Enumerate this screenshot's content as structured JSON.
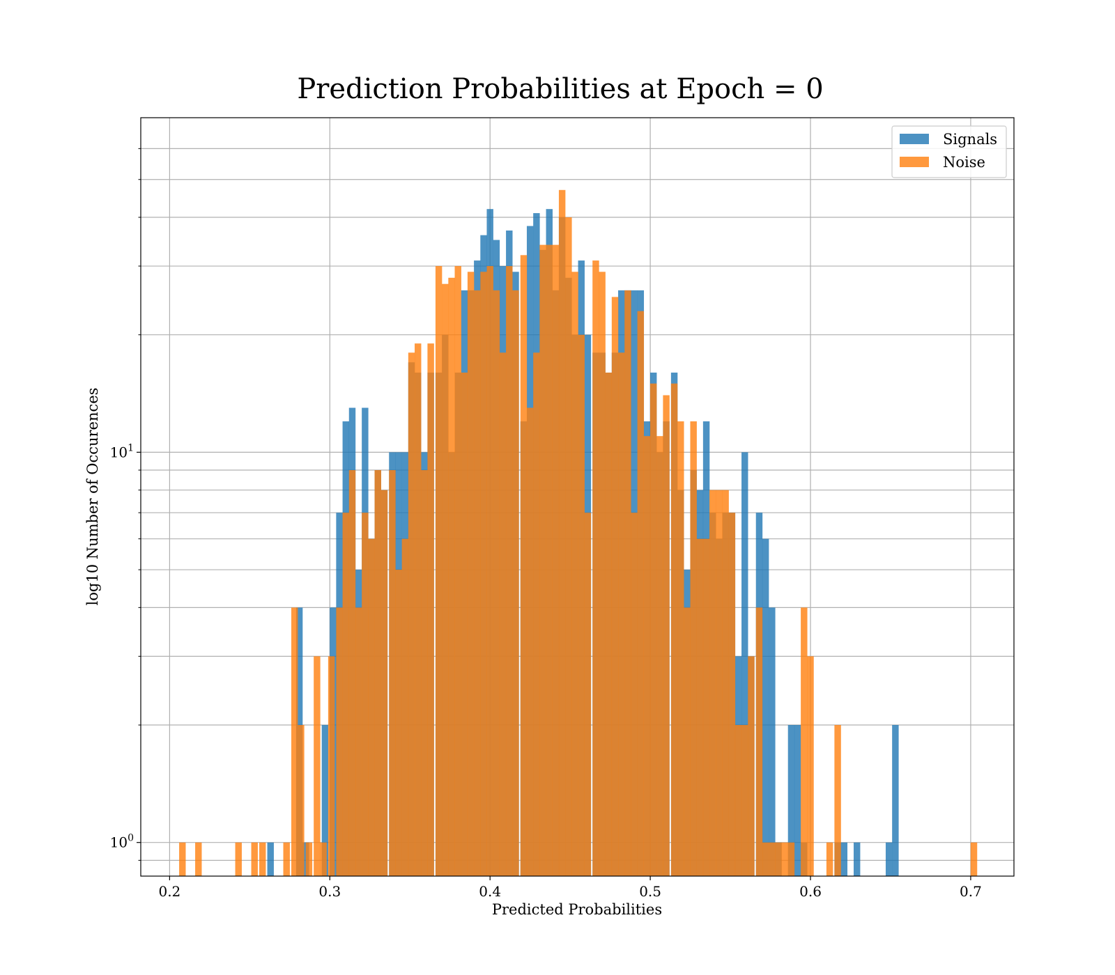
{
  "chart_data": {
    "type": "bar",
    "title": "Prediction Probabilities at Epoch = 0",
    "xlabel": "Predicted Probabilities",
    "ylabel": "log10 Number of Occurences",
    "xlim": [
      0.182,
      0.727
    ],
    "ylim": [
      0.82,
      72
    ],
    "yscale": "log",
    "grid": true,
    "legend_position": "top-right",
    "x_ticks": [
      0.2,
      0.3,
      0.4,
      0.5,
      0.6,
      0.7
    ],
    "x_tick_labels": [
      "0.2",
      "0.3",
      "0.4",
      "0.5",
      "0.6",
      "0.7"
    ],
    "y_major_ticks": [
      {
        "value": 1,
        "base": "10",
        "exp": "0"
      },
      {
        "value": 10,
        "base": "10",
        "exp": "1"
      }
    ],
    "y_minor_ticks": [
      0.9,
      2,
      3,
      4,
      5,
      6,
      7,
      8,
      9,
      20,
      30,
      40,
      50,
      60
    ],
    "series": [
      {
        "name": "Signals",
        "color": "#1f77b4",
        "opacity": 0.8,
        "bin_width": 0.0041,
        "bins": [
          [
            0.263,
            1
          ],
          [
            0.281,
            4
          ],
          [
            0.285,
            1
          ],
          [
            0.297,
            2
          ],
          [
            0.302,
            4
          ],
          [
            0.306,
            7
          ],
          [
            0.31,
            12
          ],
          [
            0.314,
            13
          ],
          [
            0.318,
            5
          ],
          [
            0.322,
            13
          ],
          [
            0.326,
            6
          ],
          [
            0.33,
            9
          ],
          [
            0.334,
            8
          ],
          [
            0.339,
            10
          ],
          [
            0.343,
            10
          ],
          [
            0.347,
            10
          ],
          [
            0.351,
            17
          ],
          [
            0.355,
            16
          ],
          [
            0.359,
            10
          ],
          [
            0.363,
            16
          ],
          [
            0.368,
            16
          ],
          [
            0.372,
            20
          ],
          [
            0.376,
            10
          ],
          [
            0.38,
            16
          ],
          [
            0.384,
            26
          ],
          [
            0.388,
            26
          ],
          [
            0.392,
            31
          ],
          [
            0.396,
            36
          ],
          [
            0.4,
            42
          ],
          [
            0.404,
            35
          ],
          [
            0.408,
            30
          ],
          [
            0.412,
            37
          ],
          [
            0.416,
            29
          ],
          [
            0.421,
            12
          ],
          [
            0.425,
            38
          ],
          [
            0.429,
            41
          ],
          [
            0.433,
            33
          ],
          [
            0.437,
            42
          ],
          [
            0.441,
            26
          ],
          [
            0.445,
            40
          ],
          [
            0.449,
            28
          ],
          [
            0.453,
            20
          ],
          [
            0.457,
            31
          ],
          [
            0.461,
            20
          ],
          [
            0.466,
            18
          ],
          [
            0.47,
            18
          ],
          [
            0.474,
            16
          ],
          [
            0.478,
            18
          ],
          [
            0.482,
            26
          ],
          [
            0.486,
            26
          ],
          [
            0.49,
            26
          ],
          [
            0.494,
            26
          ],
          [
            0.498,
            12
          ],
          [
            0.502,
            16
          ],
          [
            0.506,
            10
          ],
          [
            0.51,
            12
          ],
          [
            0.515,
            16
          ],
          [
            0.519,
            8
          ],
          [
            0.523,
            5
          ],
          [
            0.527,
            9
          ],
          [
            0.531,
            8
          ],
          [
            0.535,
            12
          ],
          [
            0.539,
            7
          ],
          [
            0.543,
            6
          ],
          [
            0.547,
            7
          ],
          [
            0.551,
            7
          ],
          [
            0.555,
            3
          ],
          [
            0.559,
            10
          ],
          [
            0.563,
            3
          ],
          [
            0.568,
            7
          ],
          [
            0.572,
            6
          ],
          [
            0.576,
            4
          ],
          [
            0.58,
            1
          ],
          [
            0.588,
            2
          ],
          [
            0.592,
            2
          ],
          [
            0.596,
            1
          ],
          [
            0.617,
            1
          ],
          [
            0.621,
            1
          ],
          [
            0.629,
            1
          ],
          [
            0.649,
            1
          ],
          [
            0.653,
            2
          ]
        ]
      },
      {
        "name": "Noise",
        "color": "#ff7f0e",
        "opacity": 0.8,
        "bin_width": 0.0041,
        "bins": [
          [
            0.208,
            1
          ],
          [
            0.218,
            1
          ],
          [
            0.243,
            1
          ],
          [
            0.253,
            1
          ],
          [
            0.258,
            1
          ],
          [
            0.273,
            1
          ],
          [
            0.278,
            4
          ],
          [
            0.282,
            2
          ],
          [
            0.287,
            1
          ],
          [
            0.292,
            3
          ],
          [
            0.296,
            1
          ],
          [
            0.301,
            3
          ],
          [
            0.306,
            4
          ],
          [
            0.31,
            7
          ],
          [
            0.314,
            9
          ],
          [
            0.318,
            4
          ],
          [
            0.322,
            7
          ],
          [
            0.326,
            6
          ],
          [
            0.33,
            9
          ],
          [
            0.334,
            8
          ],
          [
            0.339,
            9
          ],
          [
            0.343,
            5
          ],
          [
            0.347,
            6
          ],
          [
            0.351,
            18
          ],
          [
            0.355,
            19
          ],
          [
            0.359,
            9
          ],
          [
            0.363,
            19
          ],
          [
            0.368,
            30
          ],
          [
            0.372,
            27
          ],
          [
            0.376,
            28
          ],
          [
            0.38,
            30
          ],
          [
            0.384,
            16
          ],
          [
            0.388,
            29
          ],
          [
            0.392,
            26
          ],
          [
            0.396,
            29
          ],
          [
            0.4,
            30
          ],
          [
            0.404,
            26
          ],
          [
            0.408,
            18
          ],
          [
            0.412,
            30
          ],
          [
            0.416,
            26
          ],
          [
            0.421,
            32
          ],
          [
            0.425,
            13
          ],
          [
            0.429,
            18
          ],
          [
            0.433,
            34
          ],
          [
            0.437,
            34
          ],
          [
            0.441,
            34
          ],
          [
            0.445,
            47
          ],
          [
            0.449,
            40
          ],
          [
            0.453,
            29
          ],
          [
            0.457,
            20
          ],
          [
            0.461,
            7
          ],
          [
            0.466,
            31
          ],
          [
            0.47,
            29
          ],
          [
            0.474,
            16
          ],
          [
            0.478,
            25
          ],
          [
            0.482,
            18
          ],
          [
            0.486,
            26
          ],
          [
            0.49,
            7
          ],
          [
            0.494,
            23
          ],
          [
            0.498,
            11
          ],
          [
            0.502,
            15
          ],
          [
            0.506,
            11
          ],
          [
            0.51,
            14
          ],
          [
            0.515,
            15
          ],
          [
            0.519,
            12
          ],
          [
            0.523,
            4
          ],
          [
            0.527,
            12
          ],
          [
            0.531,
            6
          ],
          [
            0.535,
            6
          ],
          [
            0.539,
            8
          ],
          [
            0.543,
            8
          ],
          [
            0.547,
            8
          ],
          [
            0.551,
            7
          ],
          [
            0.555,
            2
          ],
          [
            0.559,
            2
          ],
          [
            0.563,
            3
          ],
          [
            0.568,
            4
          ],
          [
            0.572,
            1
          ],
          [
            0.576,
            1
          ],
          [
            0.58,
            1
          ],
          [
            0.584,
            1
          ],
          [
            0.588,
            1
          ],
          [
            0.596,
            4
          ],
          [
            0.6,
            3
          ],
          [
            0.612,
            1
          ],
          [
            0.617,
            2
          ],
          [
            0.702,
            1
          ]
        ]
      }
    ]
  }
}
